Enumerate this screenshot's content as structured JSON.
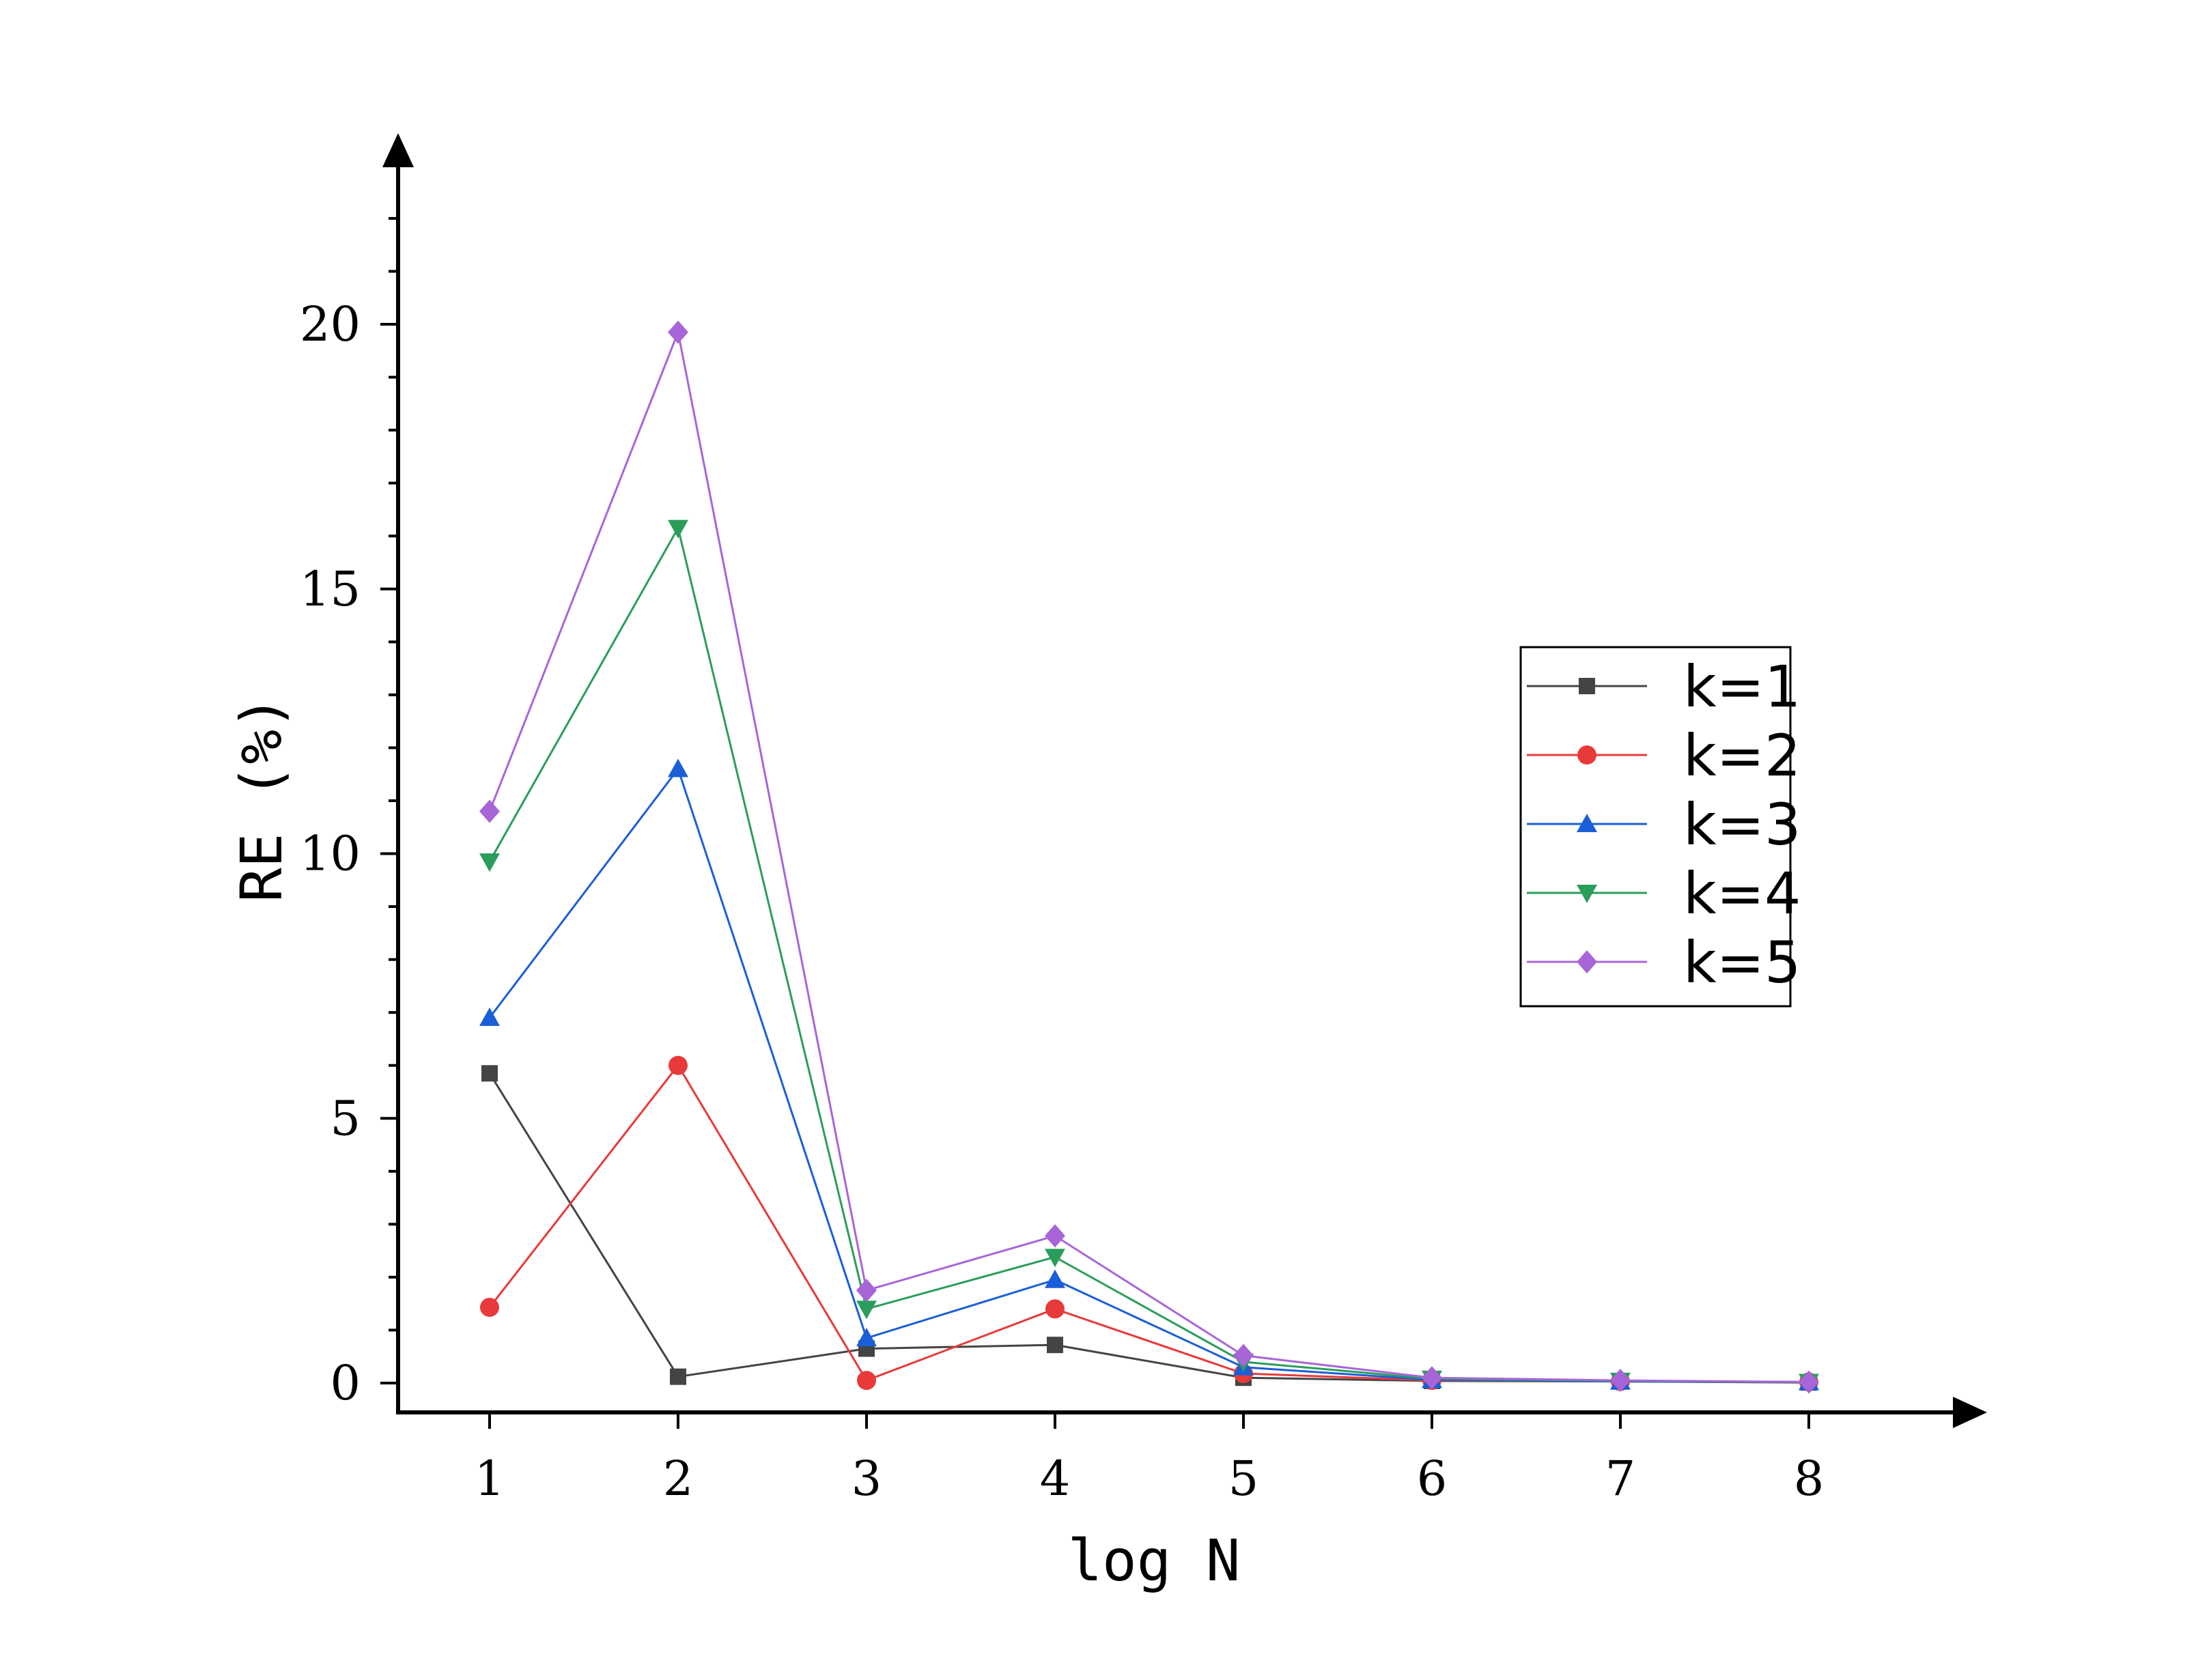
{
  "chart_data": {
    "type": "line",
    "title": "",
    "xlabel": "log N",
    "ylabel": "RE (%)",
    "x": [
      1,
      2,
      3,
      4,
      5,
      6,
      7,
      8
    ],
    "xlim": [
      0.5,
      8.5
    ],
    "ylim": [
      -0.5,
      23.3
    ],
    "xticks": [
      1,
      2,
      3,
      4,
      5,
      6,
      7,
      8
    ],
    "yticks": [
      0,
      5,
      10,
      15,
      20
    ],
    "grid": false,
    "legend_position": "right",
    "series": [
      {
        "name": "k=1",
        "color": "#444444",
        "marker": "square",
        "values": [
          5.85,
          0.12,
          0.65,
          0.72,
          0.1,
          0.04,
          0.03,
          0.01
        ]
      },
      {
        "name": "k=2",
        "color": "#e83a3a",
        "marker": "circle",
        "values": [
          1.43,
          6.0,
          0.05,
          1.4,
          0.18,
          0.05,
          0.03,
          0.02
        ]
      },
      {
        "name": "k=3",
        "color": "#1a5fd8",
        "marker": "triangle-up",
        "values": [
          6.9,
          11.6,
          0.85,
          1.95,
          0.3,
          0.06,
          0.03,
          0.02
        ]
      },
      {
        "name": "k=4",
        "color": "#2a9d5b",
        "marker": "triangle-down",
        "values": [
          9.85,
          16.15,
          1.4,
          2.38,
          0.4,
          0.08,
          0.04,
          0.02
        ]
      },
      {
        "name": "k=5",
        "color": "#a865d8",
        "marker": "diamond",
        "values": [
          10.8,
          19.85,
          1.75,
          2.78,
          0.52,
          0.1,
          0.05,
          0.02
        ]
      }
    ]
  }
}
